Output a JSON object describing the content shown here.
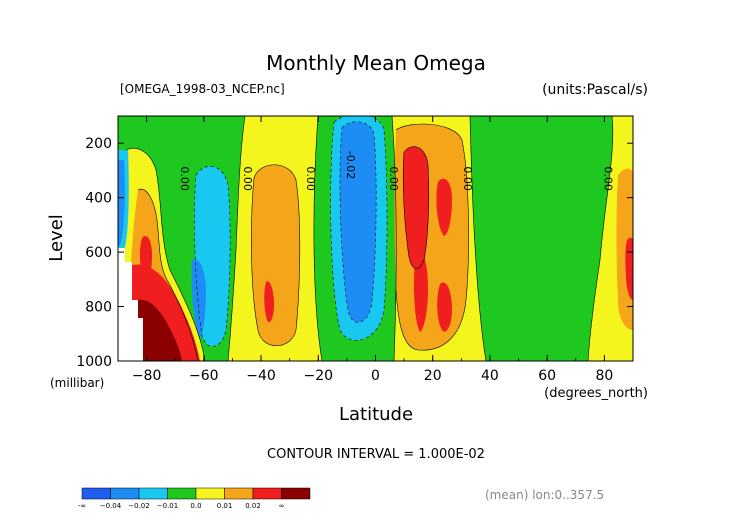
{
  "chart_data": {
    "type": "contour",
    "title": "Monthly Mean Omega",
    "file_label": "[OMEGA_1998-03_NCEP.nc]",
    "units_label": "(units:Pascal/s)",
    "xlabel": "Latitude",
    "x_unit_label": "(degrees_north)",
    "ylabel": "Level",
    "y_unit_label": "(millibar)",
    "xlim": [
      -90,
      90
    ],
    "ylim": [
      1000,
      100
    ],
    "x_ticks": [
      -80,
      -60,
      -40,
      -20,
      0,
      20,
      40,
      60,
      80
    ],
    "x_tick_labels": [
      "−80",
      "−60",
      "−40",
      "−20",
      "0",
      "20",
      "40",
      "60",
      "80"
    ],
    "y_ticks": [
      200,
      400,
      600,
      800,
      1000
    ],
    "y_tick_labels": [
      "200",
      "400",
      "600",
      "800",
      "1000"
    ],
    "contour_interval_text": "CONTOUR INTERVAL = 1.000E-02",
    "mean_note": "(mean) lon:0..357.5",
    "legend": {
      "labels": [
        "-∞",
        "−0.04",
        "−0.02",
        "−0.01",
        "0.0",
        "0.01",
        "0.02",
        "∞"
      ],
      "colors": [
        "#1e5ff0",
        "#1e8cf5",
        "#19c8f0",
        "#1ec81e",
        "#f5f51e",
        "#f5a519",
        "#f01e1e",
        "#8b0000"
      ]
    },
    "contour_labels": [
      {
        "text": "0.00",
        "lat": -68,
        "lev": 330
      },
      {
        "text": "0.00",
        "lat": -46,
        "lev": 330
      },
      {
        "text": "0.00",
        "lat": -24,
        "lev": 330
      },
      {
        "text": "-0.02",
        "lat": -10,
        "lev": 280
      },
      {
        "text": "0.00",
        "lat": 5,
        "lev": 330
      },
      {
        "text": "0.00",
        "lat": 31,
        "lev": 330
      },
      {
        "text": "0.00",
        "lat": 80,
        "lev": 330
      }
    ],
    "fill_colors": {
      "dark_blue": "#1e5ff0",
      "mid_blue": "#1e8cf5",
      "cyan": "#19c8f0",
      "green": "#1ec81e",
      "yellow": "#f5f51e",
      "orange": "#f5a519",
      "red": "#f01e1e",
      "dark_red": "#8b0000"
    }
  }
}
